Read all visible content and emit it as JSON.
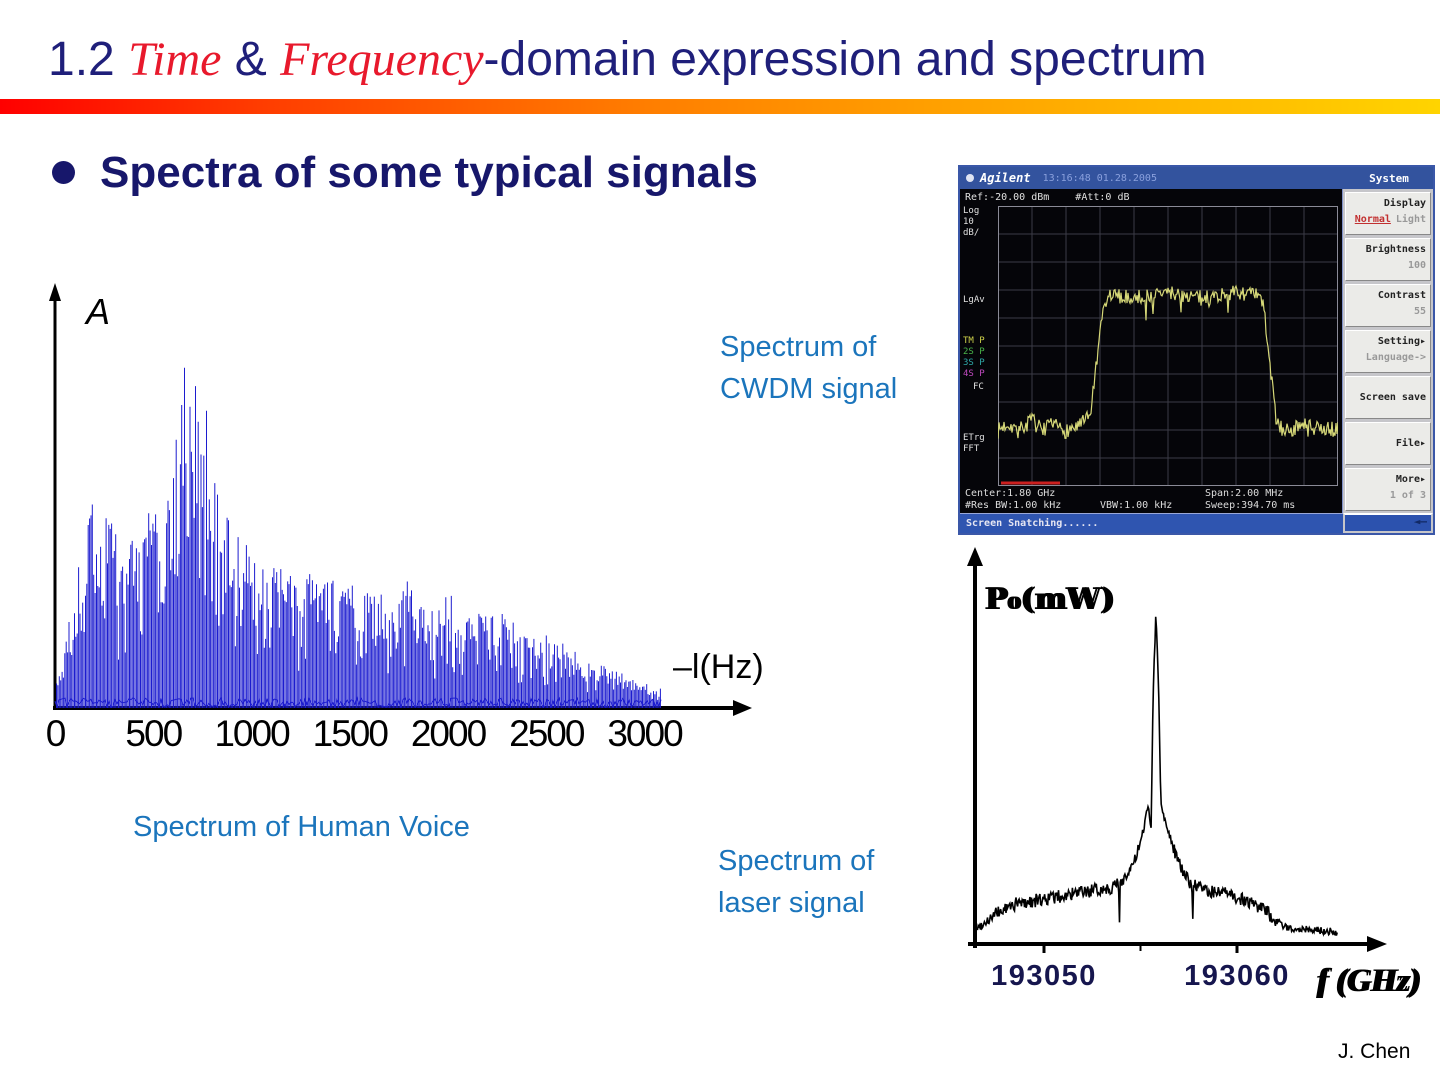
{
  "slide": {
    "title": {
      "segments": [
        {
          "text": "1.2 "
        },
        {
          "text": "Time"
        },
        {
          "text": " & "
        },
        {
          "text": "Frequency"
        },
        {
          "text": "-domain expression and spectrum"
        }
      ]
    },
    "bullet": "Spectra of some typical signals",
    "captions": {
      "voice": "Spectrum of Human Voice",
      "cwdm_line1": "Spectrum of",
      "cwdm_line2": "CWDM signal",
      "laser_line1": "Spectrum of",
      "laser_line2": "laser signal"
    },
    "footer": "J. Chen"
  },
  "analyzer": {
    "titlebar": {
      "brand": "Agilent",
      "time": "13:16:48 01.28.2005",
      "menu_title": "System"
    },
    "screen": {
      "ref": "Ref:-20.00 dBm",
      "att": "#Att:0 dB",
      "left_labels": [
        {
          "text": "Log",
          "c": "#e0e0e0"
        },
        {
          "text": "10",
          "c": "#e0e0e0"
        },
        {
          "text": "dB/",
          "c": "#e0e0e0"
        },
        {
          "text": "LgAv",
          "c": "#e0e0e0"
        },
        {
          "text": "TM P",
          "c": "#cfd24a"
        },
        {
          "text": "2S P",
          "c": "#4ab54a"
        },
        {
          "text": "3S P",
          "c": "#2fa8a8"
        },
        {
          "text": "4S P",
          "c": "#c04ac0"
        },
        {
          "text": "FC",
          "c": "#e0e0e0"
        },
        {
          "text": "ETrg",
          "c": "#e0e0e0"
        },
        {
          "text": "FFT",
          "c": "#e0e0e0"
        }
      ],
      "info": {
        "center": "Center:1.80 GHz",
        "span": "Span:2.00 MHz",
        "rbw": "#Res BW:1.00 kHz",
        "vbw": "VBW:1.00 kHz",
        "sweep": "Sweep:394.70 ms"
      },
      "status": "Screen Snatching......"
    },
    "menu": [
      {
        "label": "Display",
        "value_parts": [
          "Normal",
          "Light"
        ]
      },
      {
        "label": "Brightness",
        "value": "100"
      },
      {
        "label": "Contrast",
        "value": "55"
      },
      {
        "label": "Setting▸",
        "value": "Language->"
      },
      {
        "label": "Screen save",
        "value": ""
      },
      {
        "label": "File▸",
        "value": ""
      },
      {
        "label": "More▸",
        "value": "1 of 3"
      }
    ],
    "back_label": "◄—"
  },
  "chart_data": [
    {
      "id": "voice-spectrum",
      "type": "bar",
      "title": "Spectrum of Human Voice",
      "xlabel": "–l(Hz)",
      "ylabel": "A",
      "x_ticks": [
        0,
        500,
        1000,
        1500,
        2000,
        2500,
        3000
      ],
      "xlim": [
        0,
        3100
      ],
      "ylim": [
        0,
        1
      ],
      "grid": false,
      "envelope_note": "dense comb of spectral lines; values are relative amplitude envelope vs Hz",
      "envelope": [
        [
          0,
          0.06
        ],
        [
          50,
          0.18
        ],
        [
          100,
          0.35
        ],
        [
          150,
          0.5
        ],
        [
          200,
          0.62
        ],
        [
          250,
          0.6
        ],
        [
          300,
          0.55
        ],
        [
          350,
          0.52
        ],
        [
          400,
          0.48
        ],
        [
          450,
          0.55
        ],
        [
          500,
          0.6
        ],
        [
          550,
          0.52
        ],
        [
          600,
          0.68
        ],
        [
          650,
          1.0
        ],
        [
          700,
          0.92
        ],
        [
          750,
          0.95
        ],
        [
          800,
          0.78
        ],
        [
          850,
          0.6
        ],
        [
          900,
          0.55
        ],
        [
          950,
          0.5
        ],
        [
          1000,
          0.45
        ],
        [
          1050,
          0.42
        ],
        [
          1100,
          0.4
        ],
        [
          1150,
          0.44
        ],
        [
          1200,
          0.38
        ],
        [
          1250,
          0.34
        ],
        [
          1300,
          0.42
        ],
        [
          1350,
          0.36
        ],
        [
          1400,
          0.38
        ],
        [
          1450,
          0.34
        ],
        [
          1500,
          0.38
        ],
        [
          1550,
          0.32
        ],
        [
          1600,
          0.34
        ],
        [
          1650,
          0.36
        ],
        [
          1700,
          0.3
        ],
        [
          1750,
          0.32
        ],
        [
          1800,
          0.38
        ],
        [
          1850,
          0.3
        ],
        [
          1900,
          0.32
        ],
        [
          1950,
          0.28
        ],
        [
          2000,
          0.36
        ],
        [
          2050,
          0.3
        ],
        [
          2100,
          0.26
        ],
        [
          2150,
          0.28
        ],
        [
          2200,
          0.3
        ],
        [
          2250,
          0.26
        ],
        [
          2300,
          0.28
        ],
        [
          2350,
          0.24
        ],
        [
          2400,
          0.22
        ],
        [
          2450,
          0.2
        ],
        [
          2500,
          0.22
        ],
        [
          2550,
          0.18
        ],
        [
          2600,
          0.2
        ],
        [
          2650,
          0.16
        ],
        [
          2700,
          0.14
        ],
        [
          2750,
          0.13
        ],
        [
          2800,
          0.12
        ],
        [
          2850,
          0.11
        ],
        [
          2900,
          0.1
        ],
        [
          2950,
          0.09
        ],
        [
          3000,
          0.08
        ],
        [
          3050,
          0.07
        ],
        [
          3085,
          0.06
        ]
      ]
    },
    {
      "id": "cwdm-spectrum",
      "type": "line",
      "title": "Spectrum of CWDM signal",
      "center": "1.80 GHz",
      "span": "2.00 MHz",
      "grid": true,
      "envelope_note": "x = fraction of span, y = fraction of screen height from bottom",
      "envelope": [
        [
          0,
          0.2
        ],
        [
          0.03,
          0.23
        ],
        [
          0.06,
          0.2
        ],
        [
          0.1,
          0.24
        ],
        [
          0.13,
          0.2
        ],
        [
          0.16,
          0.22
        ],
        [
          0.2,
          0.2
        ],
        [
          0.24,
          0.22
        ],
        [
          0.27,
          0.25
        ],
        [
          0.29,
          0.45
        ],
        [
          0.31,
          0.66
        ],
        [
          0.33,
          0.71
        ],
        [
          0.4,
          0.7
        ],
        [
          0.5,
          0.72
        ],
        [
          0.6,
          0.7
        ],
        [
          0.7,
          0.72
        ],
        [
          0.76,
          0.71
        ],
        [
          0.78,
          0.68
        ],
        [
          0.8,
          0.45
        ],
        [
          0.82,
          0.22
        ],
        [
          0.85,
          0.2
        ],
        [
          0.9,
          0.22
        ],
        [
          0.95,
          0.2
        ],
        [
          1.0,
          0.21
        ]
      ]
    },
    {
      "id": "laser-spectrum",
      "type": "line",
      "title": "Spectrum of laser signal",
      "xlabel": "f (GHz)",
      "ylabel": "P₀(mW)",
      "x_ticks": [
        193050,
        193060
      ],
      "minor_ticks": [
        193055
      ],
      "xlim": [
        193046,
        193065
      ],
      "ylim": [
        0,
        1
      ],
      "peak_ghz": 193055.8,
      "notches": [
        193053.9,
        193057.7
      ],
      "envelope_note": "relative power vs optical frequency in GHz",
      "envelope": [
        [
          193046.5,
          0.045
        ],
        [
          193047.5,
          0.09
        ],
        [
          193048.5,
          0.12
        ],
        [
          193049.5,
          0.13
        ],
        [
          193050.5,
          0.14
        ],
        [
          193051.5,
          0.15
        ],
        [
          193052.5,
          0.16
        ],
        [
          193053.5,
          0.17
        ],
        [
          193054.0,
          0.19
        ],
        [
          193054.5,
          0.22
        ],
        [
          193055.0,
          0.3
        ],
        [
          193055.4,
          0.42
        ],
        [
          193055.55,
          0.35
        ],
        [
          193055.65,
          0.75
        ],
        [
          193055.8,
          1.0
        ],
        [
          193055.95,
          0.75
        ],
        [
          193056.05,
          0.42
        ],
        [
          193056.5,
          0.33
        ],
        [
          193057.0,
          0.24
        ],
        [
          193057.5,
          0.19
        ],
        [
          193058.0,
          0.17
        ],
        [
          193058.5,
          0.16
        ],
        [
          193059.5,
          0.15
        ],
        [
          193060.5,
          0.13
        ],
        [
          193061.5,
          0.1
        ],
        [
          193062.0,
          0.07
        ],
        [
          193062.5,
          0.05
        ],
        [
          193063.5,
          0.045
        ],
        [
          193064.5,
          0.04
        ],
        [
          193065.2,
          0.035
        ]
      ]
    }
  ],
  "colors": {
    "navy": "#1f1f7a",
    "red": "#e8192c",
    "blue_label": "#1b75bc",
    "voice_trace": "#1c1ccf",
    "laser_trace": "#000000",
    "cwdm_trace": "#d6d878",
    "tick_navy": "#16164e"
  }
}
